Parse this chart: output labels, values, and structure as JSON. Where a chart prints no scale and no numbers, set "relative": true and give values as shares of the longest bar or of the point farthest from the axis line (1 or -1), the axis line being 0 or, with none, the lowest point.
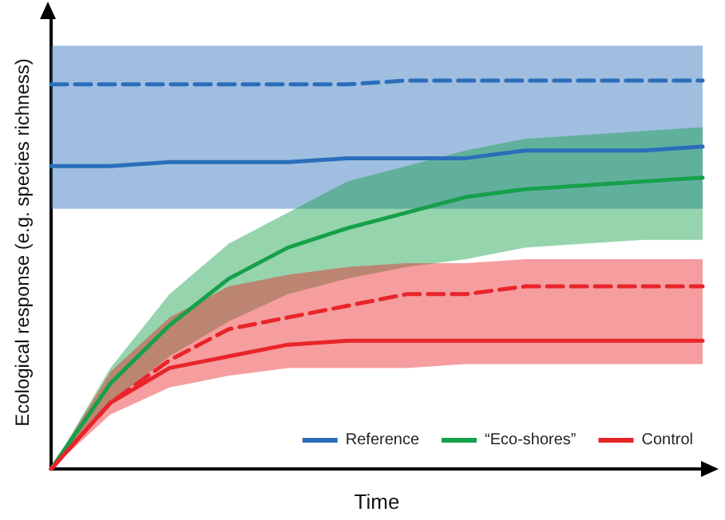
{
  "chart_data": {
    "type": "line",
    "relative": true,
    "xlabel": "Time",
    "ylabel": "Ecological response (e.g. species richness)",
    "categories": [
      null,
      null,
      null,
      null,
      null,
      null,
      null,
      null,
      null,
      null,
      null,
      null
    ],
    "grid": false,
    "legend": "bottom right",
    "marker": "none",
    "series": [
      {
        "name": "Reference",
        "color": "#2a6ebb",
        "line_style": "solid",
        "values": [
          0.78,
          0.78,
          0.79,
          0.79,
          0.79,
          0.8,
          0.8,
          0.8,
          0.82,
          0.82,
          0.82,
          0.83
        ],
        "lower": [
          0.67,
          0.67,
          0.67,
          0.67,
          0.67,
          0.67,
          0.67,
          0.67,
          0.67,
          0.67,
          0.67,
          0.67
        ],
        "upper": [
          1.09,
          1.09,
          1.09,
          1.09,
          1.09,
          1.09,
          1.09,
          1.09,
          1.09,
          1.09,
          1.09,
          1.09
        ]
      },
      {
        "color": "#2a6ebb",
        "line_style": "dashed",
        "values": [
          0.99,
          0.99,
          0.99,
          0.99,
          0.99,
          0.99,
          1,
          1,
          1,
          1,
          1,
          1
        ]
      },
      {
        "name": "“Eco-shores”",
        "color": "#16a04a",
        "line_style": "solid",
        "values": [
          0,
          0.22,
          0.37,
          0.49,
          0.57,
          0.62,
          0.66,
          0.7,
          0.72,
          0.73,
          0.74,
          0.75
        ],
        "lower": [
          0,
          0.17,
          0.29,
          0.38,
          0.45,
          0.49,
          0.52,
          0.54,
          0.57,
          0.58,
          0.59,
          0.59
        ],
        "upper": [
          0,
          0.26,
          0.45,
          0.58,
          0.66,
          0.74,
          0.78,
          0.82,
          0.85,
          0.86,
          0.87,
          0.88
        ]
      },
      {
        "name": "Control",
        "color": "#e8252a",
        "line_style": "solid",
        "values": [
          0,
          0.17,
          0.26,
          0.29,
          0.32,
          0.33,
          0.33,
          0.33,
          0.33,
          0.33,
          0.33,
          0.33
        ],
        "lower": [
          0,
          0.14,
          0.21,
          0.24,
          0.26,
          0.26,
          0.26,
          0.27,
          0.27,
          0.27,
          0.27,
          0.27
        ],
        "upper": [
          0,
          0.25,
          0.39,
          0.47,
          0.5,
          0.52,
          0.53,
          0.53,
          0.54,
          0.54,
          0.54,
          0.54
        ]
      },
      {
        "color": "#e8252a",
        "line_style": "dashed",
        "values": [
          0,
          0.17,
          0.28,
          0.36,
          0.39,
          0.42,
          0.45,
          0.45,
          0.47,
          0.47,
          0.47,
          0.47
        ]
      }
    ]
  }
}
